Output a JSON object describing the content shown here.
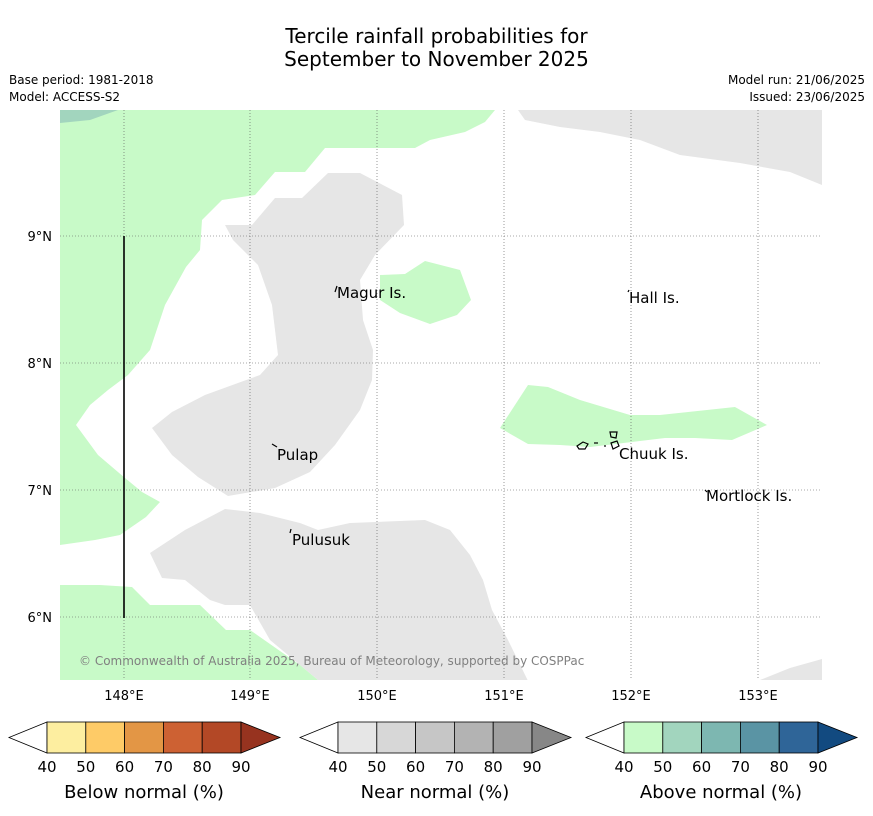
{
  "title": {
    "line1": "Tercile rainfall probabilities for",
    "line2": "September to November 2025"
  },
  "meta": {
    "base_period": "Base period: 1981-2018",
    "model": "Model: ACCESS-S2",
    "model_run": "Model run: 21/06/2025",
    "issued": "Issued: 23/06/2025"
  },
  "map": {
    "lon_ticks": [
      "148°E",
      "149°E",
      "150°E",
      "151°E",
      "152°E",
      "153°E"
    ],
    "lat_ticks": [
      "9°N",
      "8°N",
      "7°N",
      "6°N"
    ],
    "places": [
      {
        "name": "Magur Is."
      },
      {
        "name": "Hall Is."
      },
      {
        "name": "Pulap"
      },
      {
        "name": "Chuuk Is."
      },
      {
        "name": "Mortlock Is."
      },
      {
        "name": "Pulusuk"
      }
    ],
    "copyright": "© Commonwealth of Australia 2025, Bureau of Meteorology, supported by COSPPac",
    "colors": {
      "near_normal_40": "#e6e6e6",
      "above_normal_40": "#c8fac8",
      "above_normal_50": "#a2d5be"
    }
  },
  "colorbars": [
    {
      "label": "Below normal (%)",
      "ticks": [
        "40",
        "50",
        "60",
        "70",
        "80",
        "90"
      ],
      "colors": [
        "#fdeea0",
        "#fecb67",
        "#e39645",
        "#cd6133",
        "#b34826",
        "#97331f"
      ]
    },
    {
      "label": "Near normal (%)",
      "ticks": [
        "40",
        "50",
        "60",
        "70",
        "80",
        "90"
      ],
      "colors": [
        "#e6e6e6",
        "#d7d7d7",
        "#c6c6c6",
        "#b3b3b3",
        "#a0a0a0",
        "#878787"
      ]
    },
    {
      "label": "Above normal (%)",
      "ticks": [
        "40",
        "50",
        "60",
        "70",
        "80",
        "90"
      ],
      "colors": [
        "#c8fac8",
        "#a2d5be",
        "#7db7b1",
        "#5a94a4",
        "#2f6598",
        "#124a80"
      ]
    }
  ]
}
